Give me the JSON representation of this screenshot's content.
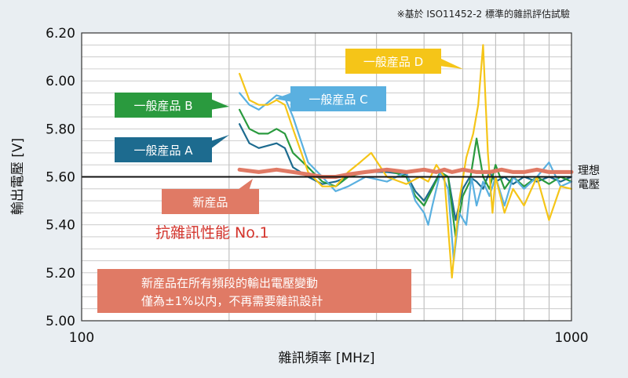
{
  "chart_data": {
    "type": "line",
    "note": "※基於 ISO11452-2 標準的雜訊評估試驗",
    "xlabel": "雜訊頻率 [MHz]",
    "ylabel": "輸出電壓 [V]",
    "x_scale": "log",
    "xlim": [
      100,
      1000
    ],
    "ylim": [
      5.0,
      6.2
    ],
    "x_ticks": [
      "100",
      "1000"
    ],
    "y_ticks": [
      "6.20",
      "6.00",
      "5.80",
      "5.60",
      "5.40",
      "5.20",
      "5.00"
    ],
    "grid": true,
    "reference": {
      "value": 5.6,
      "label_line1": "理想",
      "label_line2": "電壓"
    },
    "series": [
      {
        "name": "一般産品 A",
        "color": "#1d6b8f",
        "points": [
          [
            210,
            5.82
          ],
          [
            220,
            5.74
          ],
          [
            230,
            5.72
          ],
          [
            240,
            5.73
          ],
          [
            250,
            5.74
          ],
          [
            260,
            5.72
          ],
          [
            270,
            5.64
          ],
          [
            290,
            5.6
          ],
          [
            310,
            5.57
          ],
          [
            330,
            5.58
          ],
          [
            350,
            5.6
          ],
          [
            380,
            5.62
          ],
          [
            420,
            5.62
          ],
          [
            460,
            5.61
          ],
          [
            480,
            5.54
          ],
          [
            500,
            5.5
          ],
          [
            520,
            5.56
          ],
          [
            540,
            5.62
          ],
          [
            560,
            5.6
          ],
          [
            580,
            5.42
          ],
          [
            600,
            5.55
          ],
          [
            620,
            5.6
          ],
          [
            640,
            5.58
          ],
          [
            660,
            5.55
          ],
          [
            680,
            5.62
          ],
          [
            700,
            5.58
          ],
          [
            730,
            5.6
          ],
          [
            760,
            5.57
          ],
          [
            800,
            5.6
          ],
          [
            850,
            5.58
          ],
          [
            900,
            5.6
          ],
          [
            950,
            5.58
          ],
          [
            1000,
            5.6
          ]
        ]
      },
      {
        "name": "一般産品 B",
        "color": "#2a9a3e",
        "points": [
          [
            210,
            5.88
          ],
          [
            220,
            5.8
          ],
          [
            230,
            5.78
          ],
          [
            240,
            5.78
          ],
          [
            250,
            5.8
          ],
          [
            260,
            5.78
          ],
          [
            270,
            5.7
          ],
          [
            290,
            5.64
          ],
          [
            310,
            5.58
          ],
          [
            330,
            5.56
          ],
          [
            350,
            5.6
          ],
          [
            380,
            5.62
          ],
          [
            420,
            5.63
          ],
          [
            460,
            5.6
          ],
          [
            480,
            5.52
          ],
          [
            500,
            5.48
          ],
          [
            520,
            5.55
          ],
          [
            540,
            5.62
          ],
          [
            560,
            5.6
          ],
          [
            580,
            5.35
          ],
          [
            600,
            5.52
          ],
          [
            620,
            5.58
          ],
          [
            640,
            5.76
          ],
          [
            660,
            5.6
          ],
          [
            680,
            5.55
          ],
          [
            700,
            5.65
          ],
          [
            730,
            5.55
          ],
          [
            760,
            5.6
          ],
          [
            800,
            5.56
          ],
          [
            850,
            5.6
          ],
          [
            900,
            5.57
          ],
          [
            950,
            5.6
          ],
          [
            1000,
            5.58
          ]
        ]
      },
      {
        "name": "一般産品 C",
        "color": "#5ab0e0",
        "points": [
          [
            210,
            5.95
          ],
          [
            220,
            5.9
          ],
          [
            230,
            5.88
          ],
          [
            240,
            5.91
          ],
          [
            250,
            5.94
          ],
          [
            260,
            5.93
          ],
          [
            270,
            5.85
          ],
          [
            290,
            5.66
          ],
          [
            310,
            5.6
          ],
          [
            330,
            5.54
          ],
          [
            350,
            5.56
          ],
          [
            380,
            5.6
          ],
          [
            420,
            5.58
          ],
          [
            460,
            5.62
          ],
          [
            480,
            5.5
          ],
          [
            500,
            5.45
          ],
          [
            510,
            5.4
          ],
          [
            520,
            5.48
          ],
          [
            540,
            5.62
          ],
          [
            560,
            5.55
          ],
          [
            575,
            5.25
          ],
          [
            590,
            5.45
          ],
          [
            610,
            5.4
          ],
          [
            625,
            5.6
          ],
          [
            640,
            5.48
          ],
          [
            660,
            5.58
          ],
          [
            680,
            5.52
          ],
          [
            700,
            5.6
          ],
          [
            730,
            5.48
          ],
          [
            760,
            5.6
          ],
          [
            800,
            5.55
          ],
          [
            850,
            5.6
          ],
          [
            900,
            5.66
          ],
          [
            950,
            5.56
          ],
          [
            1000,
            5.58
          ]
        ]
      },
      {
        "name": "一般産品 D",
        "color": "#f5c518",
        "points": [
          [
            210,
            6.03
          ],
          [
            220,
            5.92
          ],
          [
            230,
            5.9
          ],
          [
            240,
            5.9
          ],
          [
            250,
            5.92
          ],
          [
            260,
            5.9
          ],
          [
            270,
            5.8
          ],
          [
            290,
            5.62
          ],
          [
            310,
            5.56
          ],
          [
            330,
            5.56
          ],
          [
            350,
            5.62
          ],
          [
            370,
            5.66
          ],
          [
            390,
            5.7
          ],
          [
            420,
            5.6
          ],
          [
            460,
            5.57
          ],
          [
            490,
            5.6
          ],
          [
            510,
            5.58
          ],
          [
            530,
            5.65
          ],
          [
            550,
            5.6
          ],
          [
            570,
            5.18
          ],
          [
            590,
            5.5
          ],
          [
            610,
            5.68
          ],
          [
            630,
            5.78
          ],
          [
            645,
            5.9
          ],
          [
            660,
            6.15
          ],
          [
            675,
            5.7
          ],
          [
            690,
            5.45
          ],
          [
            700,
            5.6
          ],
          [
            730,
            5.45
          ],
          [
            760,
            5.55
          ],
          [
            800,
            5.48
          ],
          [
            850,
            5.6
          ],
          [
            900,
            5.42
          ],
          [
            950,
            5.56
          ],
          [
            1000,
            5.55
          ]
        ]
      },
      {
        "name": "新産品",
        "color": "#e07a65",
        "points": [
          [
            210,
            5.63
          ],
          [
            230,
            5.62
          ],
          [
            250,
            5.63
          ],
          [
            270,
            5.62
          ],
          [
            290,
            5.61
          ],
          [
            310,
            5.6
          ],
          [
            330,
            5.6
          ],
          [
            350,
            5.61
          ],
          [
            380,
            5.62
          ],
          [
            420,
            5.63
          ],
          [
            460,
            5.62
          ],
          [
            500,
            5.63
          ],
          [
            530,
            5.62
          ],
          [
            550,
            5.63
          ],
          [
            570,
            5.62
          ],
          [
            600,
            5.63
          ],
          [
            640,
            5.62
          ],
          [
            680,
            5.62
          ],
          [
            720,
            5.63
          ],
          [
            760,
            5.62
          ],
          [
            800,
            5.62
          ],
          [
            850,
            5.63
          ],
          [
            900,
            5.62
          ],
          [
            950,
            5.62
          ],
          [
            1000,
            5.62
          ]
        ]
      }
    ]
  },
  "callouts": {
    "d": "一般産品 D",
    "c": "一般産品 C",
    "b": "一般産品 B",
    "a": "一般産品 A",
    "new": "新産品",
    "claim": "抗雜訊性能 No.1",
    "summary_line1": "新産品在所有頻段的輸出電壓變動",
    "summary_line2": "僅為±1%以内，不再需要雜訊設計"
  }
}
